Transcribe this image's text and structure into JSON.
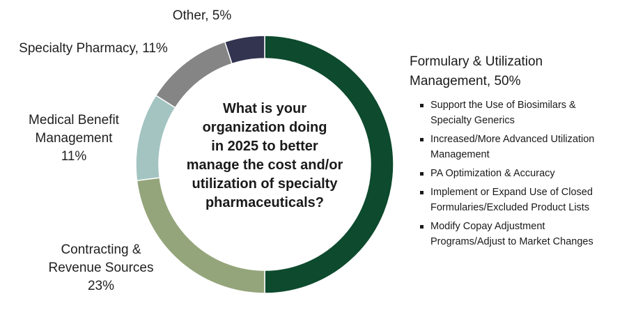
{
  "chart_data": {
    "type": "pie",
    "style": "donut",
    "center_text_lines": [
      "What is your",
      "organization doing",
      "in 2025 to better",
      "manage the cost and/or",
      "utilization of specialty",
      "pharmaceuticals?"
    ],
    "slices": [
      {
        "label_lines": [
          "Formulary & Utilization",
          "Management, 50%"
        ],
        "value": 50,
        "color": "#0d4a2e"
      },
      {
        "label_lines": [
          "Contracting &",
          "Revenue Sources",
          "23%"
        ],
        "value": 23,
        "color": "#95a57b"
      },
      {
        "label_lines": [
          "Medical Benefit",
          "Management",
          "11%"
        ],
        "value": 11,
        "color": "#a3c4c1"
      },
      {
        "label_lines": [
          "Specialty Pharmacy, 11%"
        ],
        "value": 11,
        "color": "#858585"
      },
      {
        "label_lines": [
          "Other, 5%"
        ],
        "value": 5,
        "color": "#323450"
      }
    ],
    "formulary_details": [
      [
        "Support the Use of Biosimilars &",
        "Specialty Generics"
      ],
      [
        "Increased/More Advanced Utilization",
        "Management"
      ],
      [
        "PA Optimization & Accuracy"
      ],
      [
        "Implement or Expand Use of Closed",
        "Formularies/Excluded Product Lists"
      ],
      [
        "Modify Copay Adjustment",
        "Programs/Adjust to Market Changes"
      ]
    ]
  }
}
